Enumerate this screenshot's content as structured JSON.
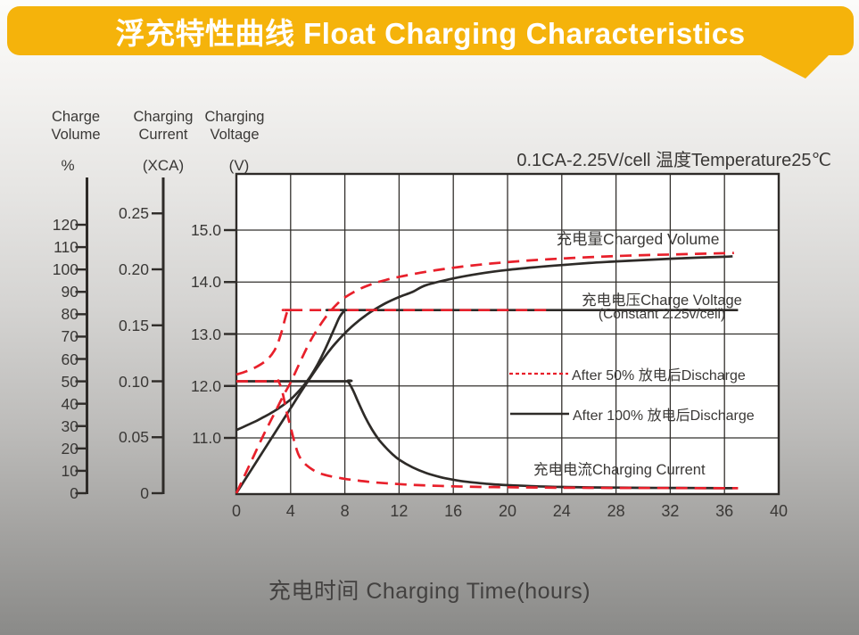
{
  "banner": {
    "title": "浮充特性曲线 Float Charging Characteristics"
  },
  "annotation": "0.1CA-2.25V/cell  温度Temperature25℃",
  "axes": {
    "volume": {
      "h1": "Charge",
      "h2": "Volume",
      "unit": "%",
      "tick_values": [
        0,
        10,
        20,
        30,
        40,
        50,
        60,
        70,
        80,
        90,
        100,
        110,
        120
      ],
      "tick_labels": [
        "0",
        "10",
        "20",
        "30",
        "40",
        "50",
        "60",
        "70",
        "80",
        "90",
        "100",
        "110",
        "120"
      ]
    },
    "current": {
      "h1": "Charging",
      "h2": "Current",
      "unit": "(XCA)",
      "tick_values": [
        0,
        0.05,
        0.1,
        0.15,
        0.2,
        0.25
      ],
      "tick_labels": [
        "0",
        "0.05",
        "0.10",
        "0.15",
        "0.20",
        "0.25"
      ]
    },
    "voltage": {
      "h1": "Charging",
      "h2": "Voltage",
      "unit": "(V)",
      "tick_values": [
        11,
        12,
        13,
        14,
        15
      ],
      "tick_labels": [
        "11.0",
        "12.0",
        "13.0",
        "14.0",
        "15.0"
      ]
    },
    "x": {
      "title": "充电时间 Charging Time(hours)",
      "tick_values": [
        0,
        4,
        8,
        12,
        16,
        20,
        24,
        28,
        32,
        36,
        40
      ],
      "tick_labels": [
        "0",
        "4",
        "8",
        "12",
        "16",
        "20",
        "24",
        "28",
        "32",
        "36",
        "40"
      ]
    }
  },
  "labels": {
    "charged_volume": "充电量Charged Volume",
    "charge_voltage": "充电电压Charge Voltage",
    "charge_voltage_sub": "(Constant 2.25v/cell)",
    "charging_current": "充电电流Charging Current"
  },
  "legend": [
    {
      "label": "After 50% 放电后Discharge",
      "style": "red-dashed"
    },
    {
      "label": "After 100% 放电后Discharge",
      "style": "black-solid"
    }
  ],
  "colors": {
    "red": "#E8202B",
    "black": "#2E2B28",
    "gold": "#F5B30B",
    "grid": "#33302D",
    "text": "#3A3836"
  },
  "chart_data": {
    "type": "line",
    "x_unit": "hours",
    "x_range": [
      0,
      40
    ],
    "grid": true,
    "condition": "0.1CA-2.25V/cell, 25C",
    "series": [
      {
        "name": "charged-volume-after-100pct-discharge",
        "axis": "volume",
        "unit": "%",
        "color": "black",
        "dash": null,
        "points": [
          [
            0,
            0
          ],
          [
            1,
            9.5
          ],
          [
            2,
            19
          ],
          [
            3,
            28.5
          ],
          [
            4,
            38
          ],
          [
            5,
            47.5
          ],
          [
            6,
            56.5
          ],
          [
            6.5,
            60.8
          ],
          [
            7,
            64.8
          ],
          [
            7.5,
            68.3
          ],
          [
            8,
            71.5
          ],
          [
            8.5,
            74.4
          ],
          [
            9,
            77
          ],
          [
            9.5,
            79.3
          ],
          [
            10,
            81.4
          ],
          [
            11,
            84.9
          ],
          [
            12,
            87.7
          ],
          [
            13,
            90
          ],
          [
            14,
            93
          ],
          [
            16,
            96
          ],
          [
            18,
            98.2
          ],
          [
            20,
            99.8
          ],
          [
            22,
            101
          ],
          [
            24,
            102
          ],
          [
            26,
            102.9
          ],
          [
            28,
            103.6
          ],
          [
            30,
            104.2
          ],
          [
            32,
            104.8
          ],
          [
            34,
            105.3
          ],
          [
            36,
            105.7
          ],
          [
            36.6,
            105.9
          ]
        ]
      },
      {
        "name": "charge-voltage-after-100pct-discharge",
        "axis": "voltage",
        "unit": "V",
        "color": "black",
        "dash": null,
        "points": [
          [
            0,
            11.15
          ],
          [
            0.5,
            11.21
          ],
          [
            1,
            11.27
          ],
          [
            1.5,
            11.33
          ],
          [
            2,
            11.4
          ],
          [
            2.5,
            11.47
          ],
          [
            3,
            11.55
          ],
          [
            3.5,
            11.64
          ],
          [
            4,
            11.74
          ],
          [
            4.5,
            11.87
          ],
          [
            5,
            12.02
          ],
          [
            5.5,
            12.2
          ],
          [
            6,
            12.42
          ],
          [
            6.5,
            12.68
          ],
          [
            7,
            12.97
          ],
          [
            7.3,
            13.15
          ],
          [
            7.6,
            13.32
          ],
          [
            7.9,
            13.43
          ],
          [
            8.1,
            13.46
          ],
          [
            9,
            13.46
          ],
          [
            37,
            13.46
          ]
        ]
      },
      {
        "name": "charging-current-after-100pct-discharge",
        "axis": "current",
        "unit": "CA",
        "color": "black",
        "dash": null,
        "points": [
          [
            0,
            0.1
          ],
          [
            7.8,
            0.1
          ],
          [
            8.2,
            0.1
          ],
          [
            8.6,
            0.092
          ],
          [
            9,
            0.081
          ],
          [
            9.5,
            0.068
          ],
          [
            10,
            0.057
          ],
          [
            10.5,
            0.048
          ],
          [
            11,
            0.041
          ],
          [
            11.5,
            0.035
          ],
          [
            12,
            0.03
          ],
          [
            13,
            0.023
          ],
          [
            14,
            0.018
          ],
          [
            15,
            0.0145
          ],
          [
            16,
            0.012
          ],
          [
            17,
            0.0102
          ],
          [
            18,
            0.0089
          ],
          [
            19,
            0.0079
          ],
          [
            20,
            0.0072
          ],
          [
            22,
            0.0062
          ],
          [
            24,
            0.0056
          ],
          [
            26,
            0.0052
          ],
          [
            28,
            0.005
          ],
          [
            30,
            0.0048
          ],
          [
            32,
            0.0047
          ],
          [
            34,
            0.0046
          ],
          [
            36,
            0.0045
          ],
          [
            36.6,
            0.0045
          ]
        ]
      },
      {
        "name": "charged-volume-after-50pct-discharge",
        "axis": "volume",
        "unit": "%",
        "color": "red",
        "dash": "long",
        "points": [
          [
            0,
            0
          ],
          [
            0.5,
            6.5
          ],
          [
            1,
            13
          ],
          [
            1.5,
            19.5
          ],
          [
            2,
            26
          ],
          [
            2.5,
            32
          ],
          [
            3,
            38
          ],
          [
            3.5,
            44
          ],
          [
            4,
            49.5
          ],
          [
            4.5,
            56
          ],
          [
            5,
            62.5
          ],
          [
            5.5,
            68.5
          ],
          [
            6,
            73.5
          ],
          [
            6.5,
            78
          ],
          [
            7,
            81.8
          ],
          [
            7.5,
            85
          ],
          [
            8,
            87.5
          ],
          [
            9,
            91
          ],
          [
            10,
            93.5
          ],
          [
            11,
            95.3
          ],
          [
            12,
            96.7
          ],
          [
            14,
            99
          ],
          [
            16,
            100.8
          ],
          [
            18,
            102.2
          ],
          [
            20,
            103.3
          ],
          [
            22,
            104.2
          ],
          [
            24,
            104.9
          ],
          [
            26,
            105.5
          ],
          [
            28,
            106
          ],
          [
            30,
            106.4
          ],
          [
            32,
            106.7
          ],
          [
            34,
            107
          ],
          [
            36,
            107.3
          ],
          [
            36.7,
            107.4
          ]
        ]
      },
      {
        "name": "charge-voltage-after-50pct-discharge",
        "axis": "voltage",
        "unit": "V",
        "color": "red",
        "dash": "long",
        "points": [
          [
            0,
            12.22
          ],
          [
            0.5,
            12.26
          ],
          [
            1,
            12.31
          ],
          [
            1.5,
            12.37
          ],
          [
            2,
            12.45
          ],
          [
            2.4,
            12.54
          ],
          [
            2.8,
            12.68
          ],
          [
            3.1,
            12.85
          ],
          [
            3.4,
            13.1
          ],
          [
            3.6,
            13.3
          ],
          [
            3.8,
            13.44
          ],
          [
            4.2,
            13.46
          ],
          [
            5,
            13.46
          ],
          [
            23,
            13.46
          ]
        ]
      },
      {
        "name": "charging-current-after-50pct-discharge",
        "axis": "current",
        "unit": "CA",
        "color": "red",
        "dash": "long",
        "points": [
          [
            0,
            0.1
          ],
          [
            2.8,
            0.1
          ],
          [
            3.1,
            0.1
          ],
          [
            3.4,
            0.09
          ],
          [
            3.7,
            0.073
          ],
          [
            4,
            0.059
          ],
          [
            4.3,
            0.045
          ],
          [
            4.6,
            0.034
          ],
          [
            5,
            0.027
          ],
          [
            5.5,
            0.022
          ],
          [
            6,
            0.0185
          ],
          [
            6.5,
            0.0165
          ],
          [
            7,
            0.015
          ],
          [
            8,
            0.0128
          ],
          [
            9,
            0.0112
          ],
          [
            10,
            0.0099
          ],
          [
            11,
            0.0089
          ],
          [
            12,
            0.0081
          ],
          [
            13,
            0.0074
          ],
          [
            14,
            0.0069
          ],
          [
            15,
            0.0065
          ],
          [
            16,
            0.0061
          ],
          [
            18,
            0.0056
          ],
          [
            20,
            0.0053
          ],
          [
            22,
            0.0051
          ],
          [
            24,
            0.0049
          ],
          [
            26,
            0.0048
          ],
          [
            28,
            0.0047
          ],
          [
            30,
            0.0046
          ],
          [
            32,
            0.0046
          ],
          [
            34,
            0.0045
          ],
          [
            37,
            0.0045
          ]
        ]
      }
    ]
  }
}
